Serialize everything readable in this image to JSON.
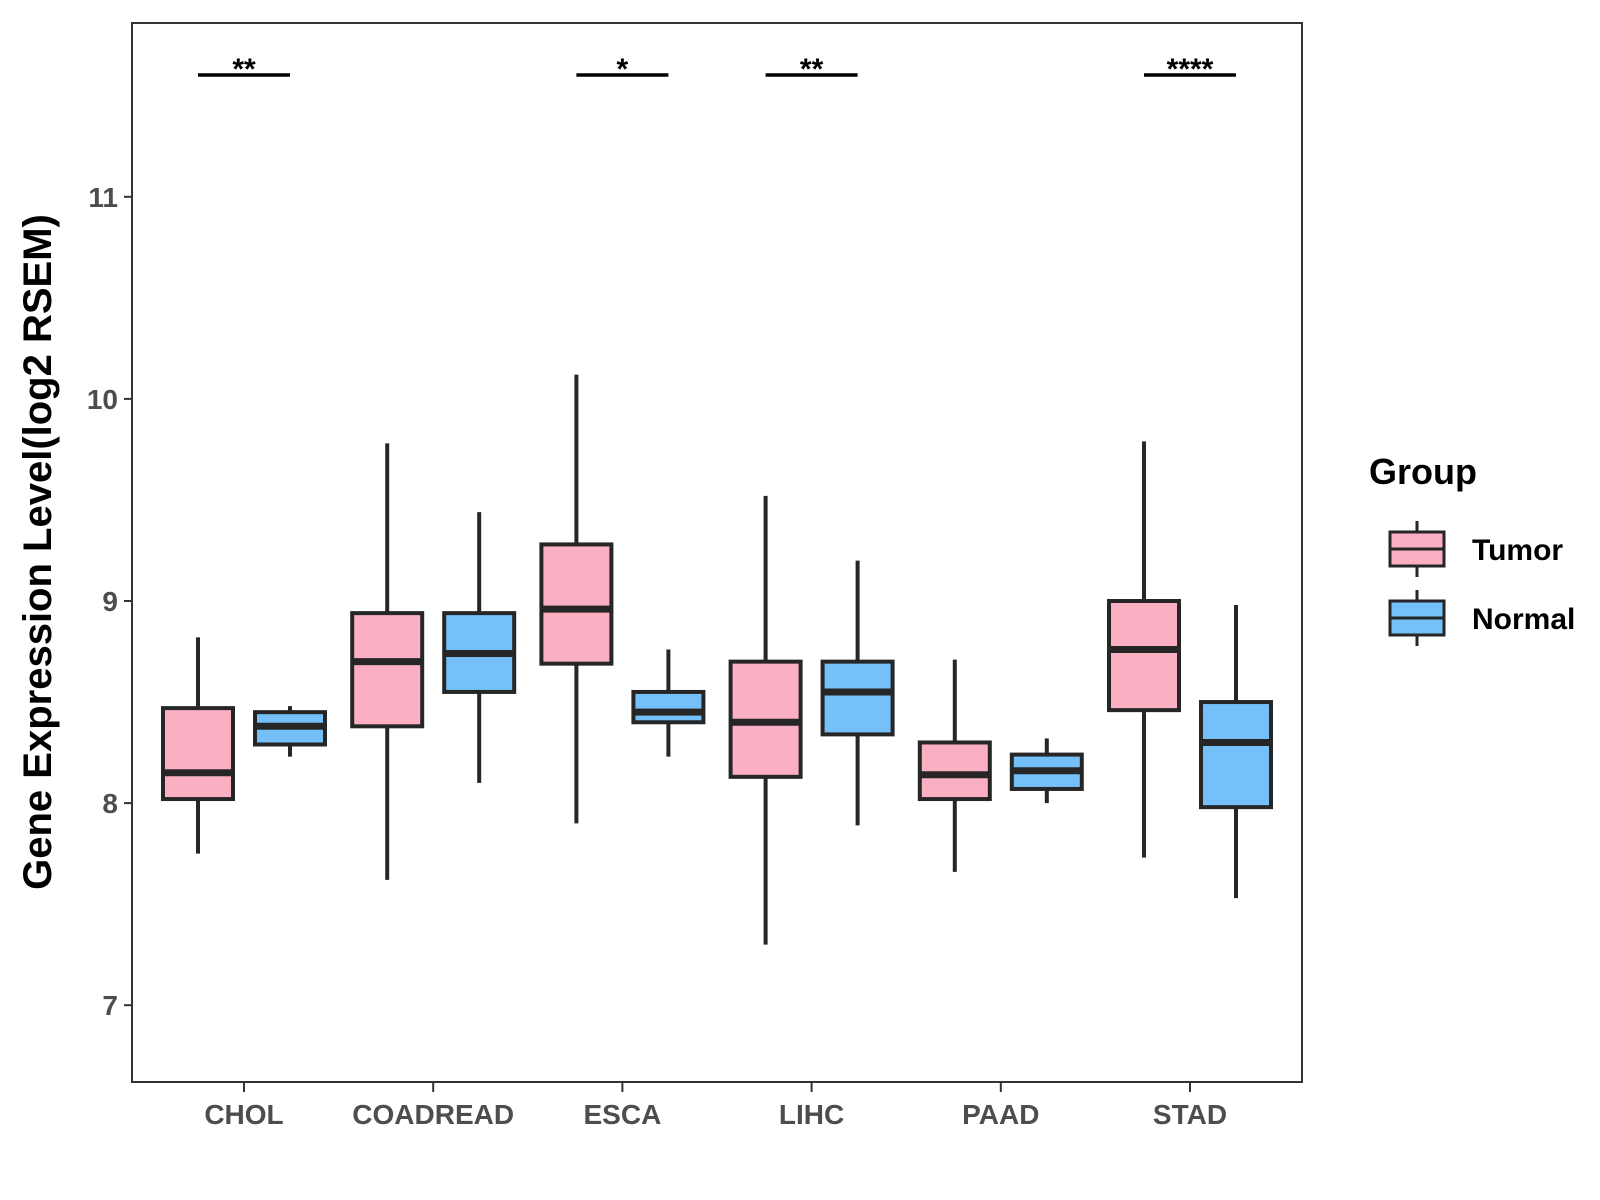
{
  "chart_data": {
    "type": "boxplot",
    "title": "",
    "xlabel": "",
    "ylabel": "Gene Expression Level(log2 RSEM)",
    "ylim": [
      6.62,
      11.86
    ],
    "yticks": [
      7,
      8,
      9,
      10,
      11
    ],
    "grid": false,
    "legend": {
      "title": "Group",
      "position": "right",
      "entries": [
        {
          "name": "Tumor",
          "color": "#FAB0C2"
        },
        {
          "name": "Normal",
          "color": "#75C0F8"
        }
      ]
    },
    "categories": [
      "CHOL",
      "COADREAD",
      "ESCA",
      "LIHC",
      "PAAD",
      "STAD"
    ],
    "series": [
      {
        "name": "Tumor",
        "color": "#FAB0C2",
        "boxes": [
          {
            "min": 7.75,
            "q1": 8.02,
            "median": 8.15,
            "q3": 8.47,
            "max": 8.82
          },
          {
            "min": 7.62,
            "q1": 8.38,
            "median": 8.7,
            "q3": 8.94,
            "max": 9.78
          },
          {
            "min": 7.9,
            "q1": 8.69,
            "median": 8.96,
            "q3": 9.28,
            "max": 10.12
          },
          {
            "min": 7.3,
            "q1": 8.13,
            "median": 8.4,
            "q3": 8.7,
            "max": 9.52
          },
          {
            "min": 7.66,
            "q1": 8.02,
            "median": 8.14,
            "q3": 8.3,
            "max": 8.71
          },
          {
            "min": 7.73,
            "q1": 8.46,
            "median": 8.76,
            "q3": 9.0,
            "max": 9.79
          }
        ]
      },
      {
        "name": "Normal",
        "color": "#75C0F8",
        "boxes": [
          {
            "min": 8.23,
            "q1": 8.29,
            "median": 8.38,
            "q3": 8.45,
            "max": 8.48
          },
          {
            "min": 8.1,
            "q1": 8.55,
            "median": 8.74,
            "q3": 8.94,
            "max": 9.44
          },
          {
            "min": 8.23,
            "q1": 8.4,
            "median": 8.45,
            "q3": 8.55,
            "max": 8.76
          },
          {
            "min": 7.89,
            "q1": 8.34,
            "median": 8.55,
            "q3": 8.7,
            "max": 9.2
          },
          {
            "min": 8.0,
            "q1": 8.07,
            "median": 8.16,
            "q3": 8.24,
            "max": 8.32
          },
          {
            "min": 7.53,
            "q1": 7.98,
            "median": 8.3,
            "q3": 8.5,
            "max": 8.98
          }
        ]
      }
    ],
    "significance": [
      {
        "category": "CHOL",
        "label": "**"
      },
      {
        "category": "ESCA",
        "label": "*"
      },
      {
        "category": "LIHC",
        "label": "**"
      },
      {
        "category": "STAD",
        "label": "****"
      }
    ]
  }
}
